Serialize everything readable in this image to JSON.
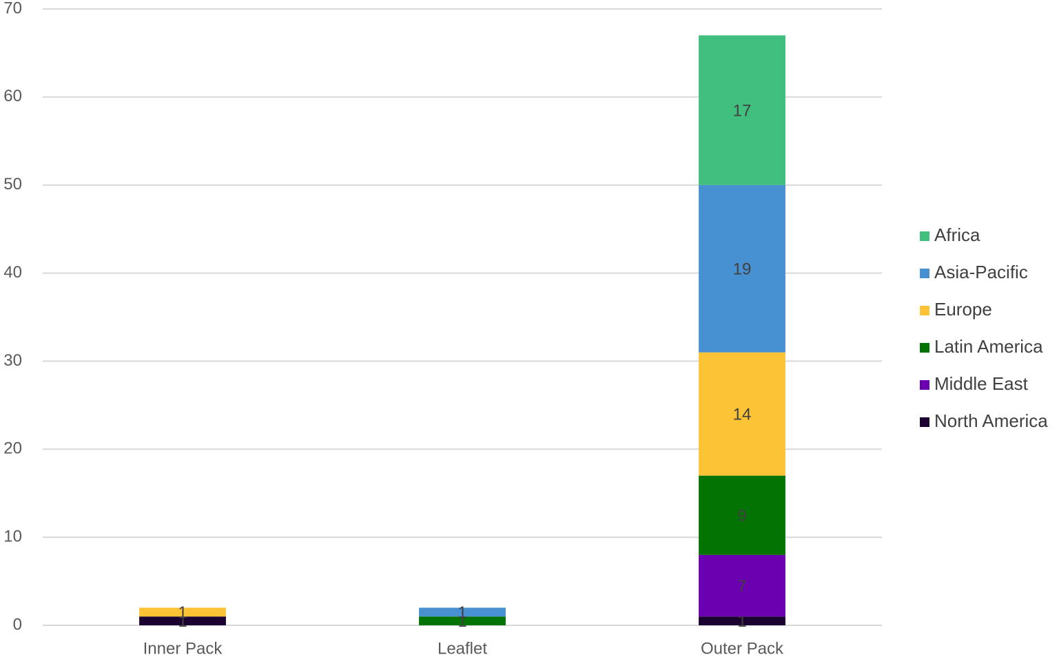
{
  "chart_data": {
    "type": "stacked_bar",
    "categories": [
      "Inner Pack",
      "Leaflet",
      "Outer Pack"
    ],
    "series": [
      {
        "name": "Africa",
        "color": "#41bf7f",
        "values": [
          null,
          null,
          17
        ]
      },
      {
        "name": "Asia-Pacific",
        "color": "#4791d3",
        "values": [
          null,
          1,
          19
        ]
      },
      {
        "name": "Europe",
        "color": "#fdc336",
        "values": [
          1,
          null,
          14
        ]
      },
      {
        "name": "Latin America",
        "color": "#037303",
        "values": [
          null,
          1,
          9
        ]
      },
      {
        "name": "Middle East",
        "color": "#6a00b0",
        "values": [
          null,
          null,
          7
        ]
      },
      {
        "name": "North America",
        "color": "#1a0330",
        "values": [
          1,
          null,
          1
        ]
      }
    ],
    "ylim": [
      0,
      70
    ],
    "yticks": [
      0,
      10,
      20,
      30,
      40,
      50,
      60,
      70
    ],
    "grid": true,
    "legend": "right"
  }
}
